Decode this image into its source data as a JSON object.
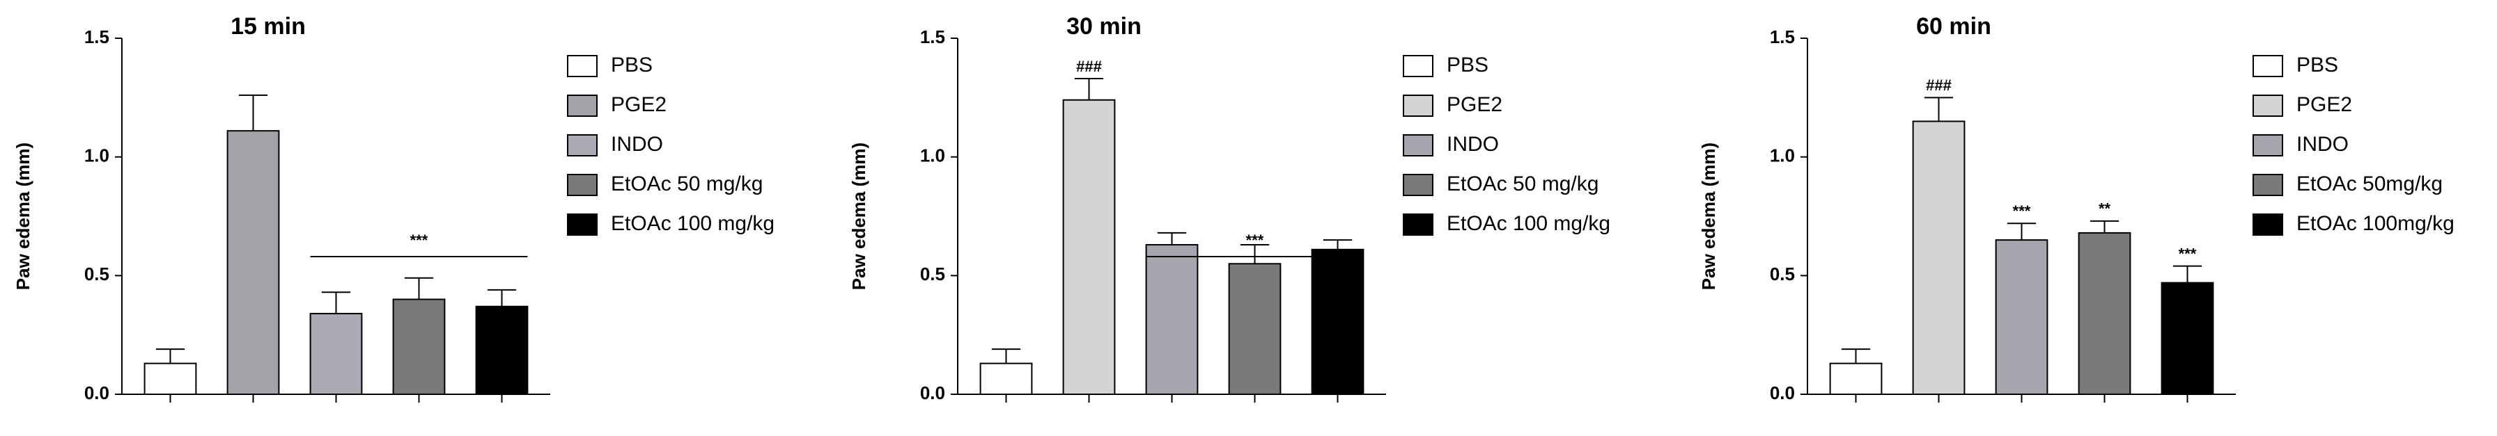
{
  "chart_data": [
    {
      "type": "bar",
      "title": "15 min",
      "ylabel": "Paw edema (mm)",
      "ylim": [
        0,
        1.5
      ],
      "yticks": [
        {
          "value": 0,
          "label": "0.0"
        },
        0.5,
        {
          "value": 1,
          "label": "1.0"
        },
        1.5
      ],
      "bracket": "***",
      "series": [
        {
          "name": "PBS",
          "color": "#ffffff",
          "values": [
            0.13
          ],
          "errors": [
            0.06
          ]
        },
        {
          "name": "PGE2",
          "color": "#a2a2a8",
          "values": [
            1.11
          ],
          "errors": [
            0.15
          ]
        },
        {
          "name": "INDO",
          "color": "#aaaab2",
          "values": [
            0.34
          ],
          "errors": [
            0.09
          ]
        },
        {
          "name": "EtOAc 50 mg/kg",
          "color": "#7a7a7a",
          "values": [
            0.4
          ],
          "errors": [
            0.09
          ]
        },
        {
          "name": "EtOAc 100 mg/kg",
          "color": "#000000",
          "values": [
            0.37
          ],
          "errors": [
            0.07
          ]
        }
      ]
    },
    {
      "type": "bar",
      "title": "30 min",
      "ylabel": "Paw edema (mm)",
      "ylim": [
        0,
        1.5
      ],
      "yticks": [
        {
          "value": 0,
          "label": "0.0"
        },
        0.5,
        {
          "value": 1,
          "label": "1.0"
        },
        1.5
      ],
      "bracket": "***",
      "series": [
        {
          "name": "PBS",
          "color": "#ffffff",
          "values": [
            0.13
          ],
          "errors": [
            0.06
          ]
        },
        {
          "name": "PGE2",
          "color": "#d4d4d4",
          "values": [
            1.24
          ],
          "errors": [
            0.09
          ],
          "annotation": "###"
        },
        {
          "name": "INDO",
          "color": "#a6a6ae",
          "values": [
            0.63
          ],
          "errors": [
            0.05
          ]
        },
        {
          "name": "EtOAc 50 mg/kg",
          "color": "#7a7a7a",
          "values": [
            0.55
          ],
          "errors": [
            0.08
          ]
        },
        {
          "name": "EtOAc 100 mg/kg",
          "color": "#000000",
          "values": [
            0.61
          ],
          "errors": [
            0.04
          ]
        }
      ]
    },
    {
      "type": "bar",
      "title": "60 min",
      "ylabel": "Paw edema (mm)",
      "ylim": [
        0,
        1.5
      ],
      "yticks": [
        {
          "value": 0,
          "label": "0.0"
        },
        0.5,
        {
          "value": 1,
          "label": "1.0"
        },
        1.5
      ],
      "series": [
        {
          "name": "PBS",
          "color": "#ffffff",
          "values": [
            0.13
          ],
          "errors": [
            0.06
          ]
        },
        {
          "name": "PGE2",
          "color": "#d4d4d4",
          "values": [
            1.15
          ],
          "errors": [
            0.1
          ],
          "annotation": "###"
        },
        {
          "name": "INDO",
          "color": "#a6a6ae",
          "values": [
            0.65
          ],
          "errors": [
            0.07
          ],
          "annotation": "***"
        },
        {
          "name": "EtOAc 50mg/kg",
          "color": "#7a7a7a",
          "values": [
            0.68
          ],
          "errors": [
            0.05
          ],
          "annotation": "**"
        },
        {
          "name": "EtOAc 100mg/kg",
          "color": "#000000",
          "values": [
            0.47
          ],
          "errors": [
            0.07
          ],
          "annotation": "***"
        }
      ]
    }
  ]
}
